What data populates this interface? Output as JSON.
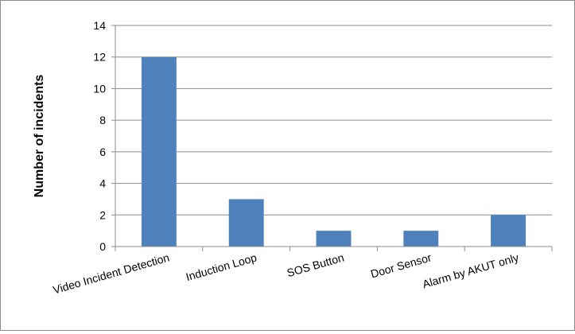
{
  "chart_data": {
    "type": "bar",
    "title": "",
    "xlabel": "",
    "ylabel": "Number of incidents",
    "categories": [
      "Video Incident Detection",
      "Induction Loop",
      "SOS Button",
      "Door Sensor",
      "Alarm by AKUT only"
    ],
    "values": [
      12,
      3,
      1,
      1,
      2
    ],
    "ylim": [
      0,
      14
    ],
    "yticks": [
      0,
      2,
      4,
      6,
      8,
      10,
      12,
      14
    ],
    "grid": true,
    "legend": "none",
    "bar_color": "#4f81bd",
    "grid_color": "#8c8c8c",
    "axis_color": "#8c8c8c"
  }
}
